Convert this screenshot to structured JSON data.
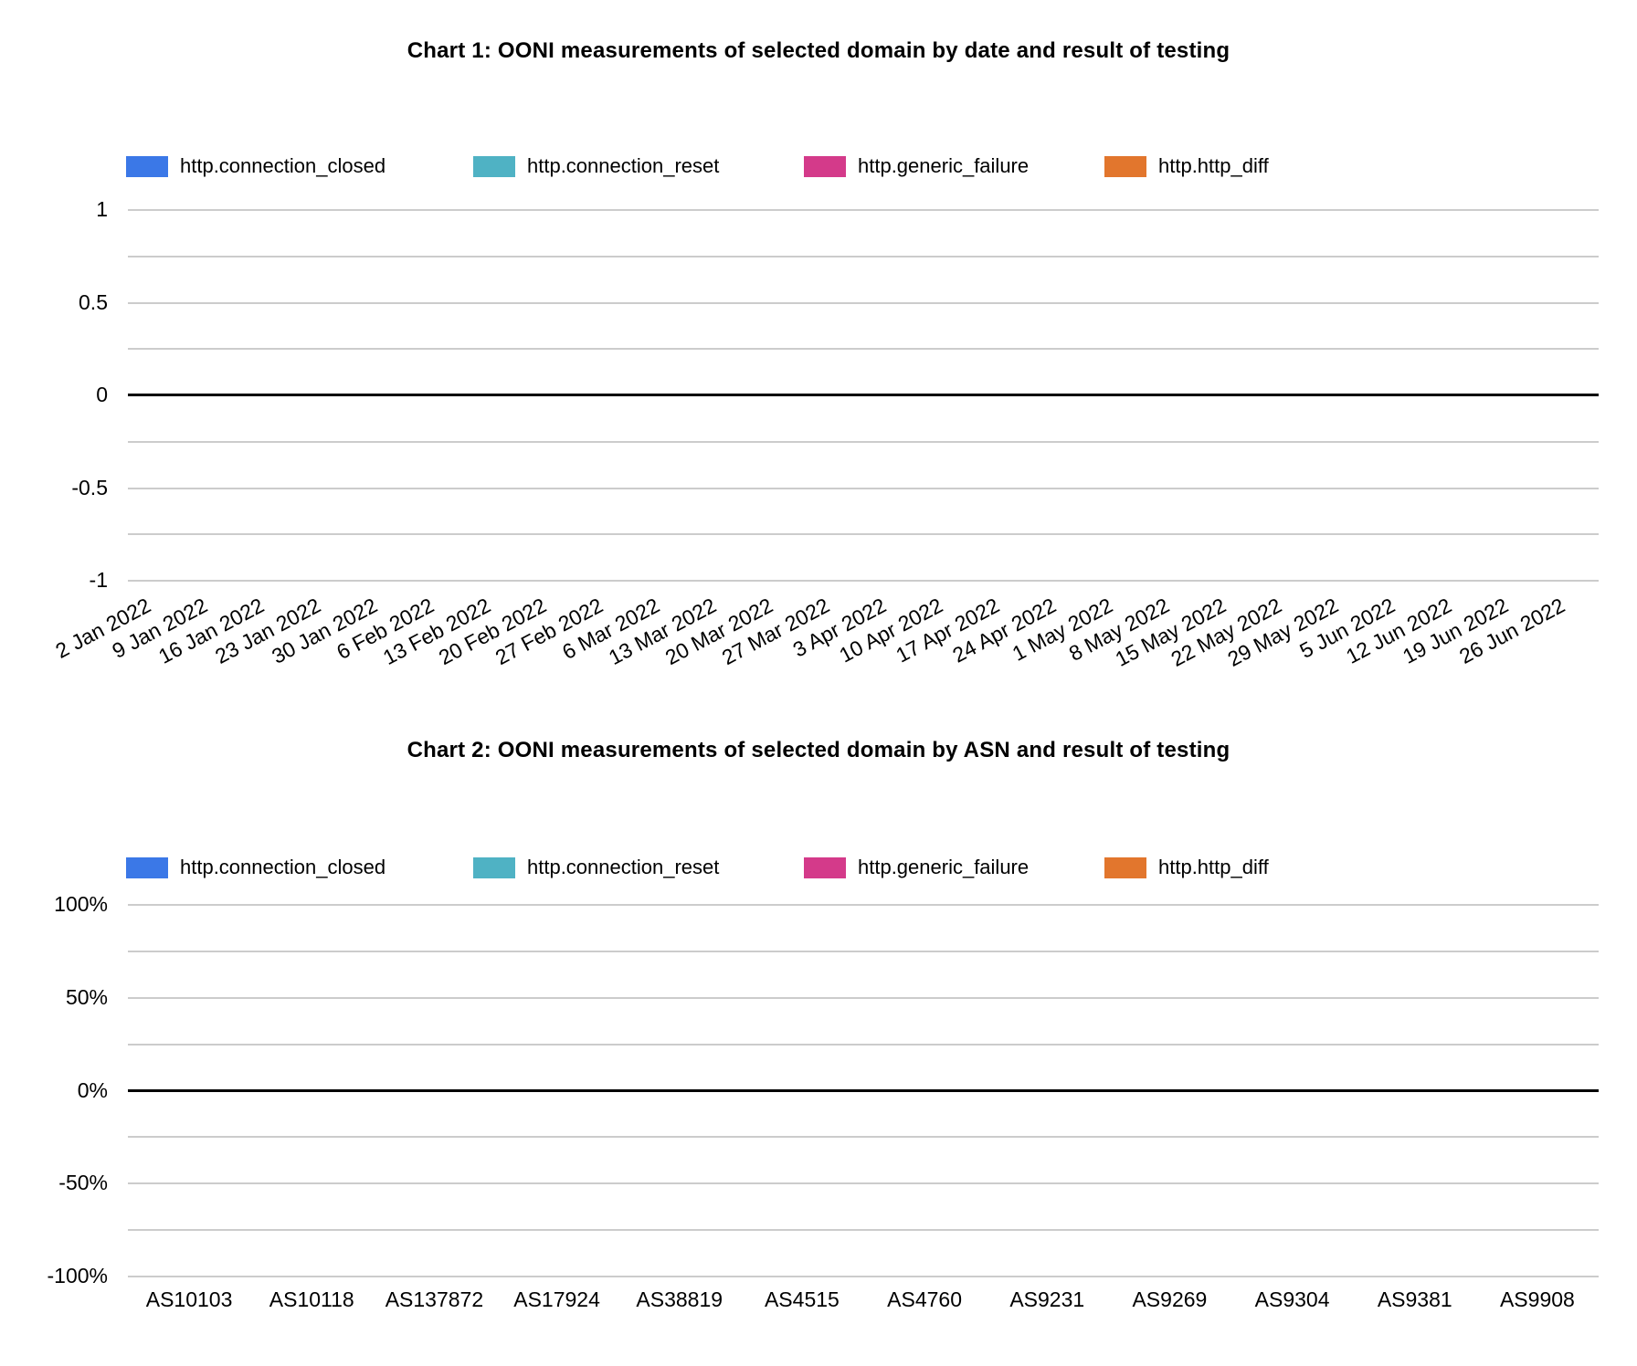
{
  "page": {
    "background": "#ffffff"
  },
  "colors": {
    "http_connection_closed": "#3B78E7",
    "http_connection_reset": "#4FB2C4",
    "http_generic_failure": "#D43A8A",
    "http_http_diff": "#E2762D",
    "gridline": "#cccccc",
    "zero_line": "#000000",
    "text": "#000000"
  },
  "charts": [
    {
      "title": "Chart 1: OONI measurements of selected domain by date and result of testing",
      "legend": [
        {
          "label": "http.connection_closed",
          "color": "#3B78E7"
        },
        {
          "label": "http.connection_reset",
          "color": "#4FB2C4"
        },
        {
          "label": "http.generic_failure",
          "color": "#D43A8A"
        },
        {
          "label": "http.http_diff",
          "color": "#E2762D"
        }
      ],
      "y_tick_labels": [
        "1",
        "0.5",
        "0",
        "-0.5",
        "-1"
      ],
      "x_tick_labels": [
        "2 Jan 2022",
        "9 Jan 2022",
        "16 Jan 2022",
        "23 Jan 2022",
        "30 Jan 2022",
        "6 Feb 2022",
        "13 Feb 2022",
        "20 Feb 2022",
        "27 Feb 2022",
        "6 Mar 2022",
        "13 Mar 2022",
        "20 Mar 2022",
        "27 Mar 2022",
        "3 Apr 2022",
        "10 Apr 2022",
        "17 Apr 2022",
        "24 Apr 2022",
        "1 May 2022",
        "8 May 2022",
        "15 May 2022",
        "22 May 2022",
        "29 May 2022",
        "5 Jun 2022",
        "12 Jun 2022",
        "19 Jun 2022",
        "26 Jun 2022"
      ],
      "x_label_style": "rotated"
    },
    {
      "title": "Chart 2: OONI measurements of selected domain by ASN and result of testing",
      "legend": [
        {
          "label": "http.connection_closed",
          "color": "#3B78E7"
        },
        {
          "label": "http.connection_reset",
          "color": "#4FB2C4"
        },
        {
          "label": "http.generic_failure",
          "color": "#D43A8A"
        },
        {
          "label": "http.http_diff",
          "color": "#E2762D"
        }
      ],
      "y_tick_labels": [
        "100%",
        "50%",
        "0%",
        "-50%",
        "-100%"
      ],
      "x_tick_labels": [
        "AS10103",
        "AS10118",
        "AS137872",
        "AS17924",
        "AS38819",
        "AS4515",
        "AS4760",
        "AS9231",
        "AS9269",
        "AS9304",
        "AS9381",
        "AS9908"
      ],
      "x_label_style": "horizontal"
    }
  ],
  "chart_data": [
    {
      "type": "bar",
      "title": "Chart 1: OONI measurements of selected domain by date and result of testing",
      "categories": [
        "2 Jan 2022",
        "9 Jan 2022",
        "16 Jan 2022",
        "23 Jan 2022",
        "30 Jan 2022",
        "6 Feb 2022",
        "13 Feb 2022",
        "20 Feb 2022",
        "27 Feb 2022",
        "6 Mar 2022",
        "13 Mar 2022",
        "20 Mar 2022",
        "27 Mar 2022",
        "3 Apr 2022",
        "10 Apr 2022",
        "17 Apr 2022",
        "24 Apr 2022",
        "1 May 2022",
        "8 May 2022",
        "15 May 2022",
        "22 May 2022",
        "29 May 2022",
        "5 Jun 2022",
        "12 Jun 2022",
        "19 Jun 2022",
        "26 Jun 2022"
      ],
      "series": [
        {
          "name": "http.connection_closed",
          "color": "#3B78E7",
          "values": []
        },
        {
          "name": "http.connection_reset",
          "color": "#4FB2C4",
          "values": []
        },
        {
          "name": "http.generic_failure",
          "color": "#D43A8A",
          "values": []
        },
        {
          "name": "http.http_diff",
          "color": "#E2762D",
          "values": []
        }
      ],
      "xlabel": "",
      "ylabel": "",
      "ylim": [
        -1,
        1
      ],
      "y_ticks": [
        1,
        0.5,
        0,
        -0.5,
        -1
      ],
      "grid": true,
      "legend_position": "top",
      "note": "no bars/points visible; chart area is empty"
    },
    {
      "type": "bar",
      "title": "Chart 2: OONI measurements of selected domain by ASN and result of testing",
      "categories": [
        "AS10103",
        "AS10118",
        "AS137872",
        "AS17924",
        "AS38819",
        "AS4515",
        "AS4760",
        "AS9231",
        "AS9269",
        "AS9304",
        "AS9381",
        "AS9908"
      ],
      "series": [
        {
          "name": "http.connection_closed",
          "color": "#3B78E7",
          "values": []
        },
        {
          "name": "http.connection_reset",
          "color": "#4FB2C4",
          "values": []
        },
        {
          "name": "http.generic_failure",
          "color": "#D43A8A",
          "values": []
        },
        {
          "name": "http.http_diff",
          "color": "#E2762D",
          "values": []
        }
      ],
      "xlabel": "",
      "ylabel": "",
      "ylim": [
        -100,
        100
      ],
      "y_unit": "%",
      "y_ticks": [
        100,
        50,
        0,
        -50,
        -100
      ],
      "grid": true,
      "legend_position": "top",
      "note": "no bars/points visible; chart area is empty"
    }
  ]
}
